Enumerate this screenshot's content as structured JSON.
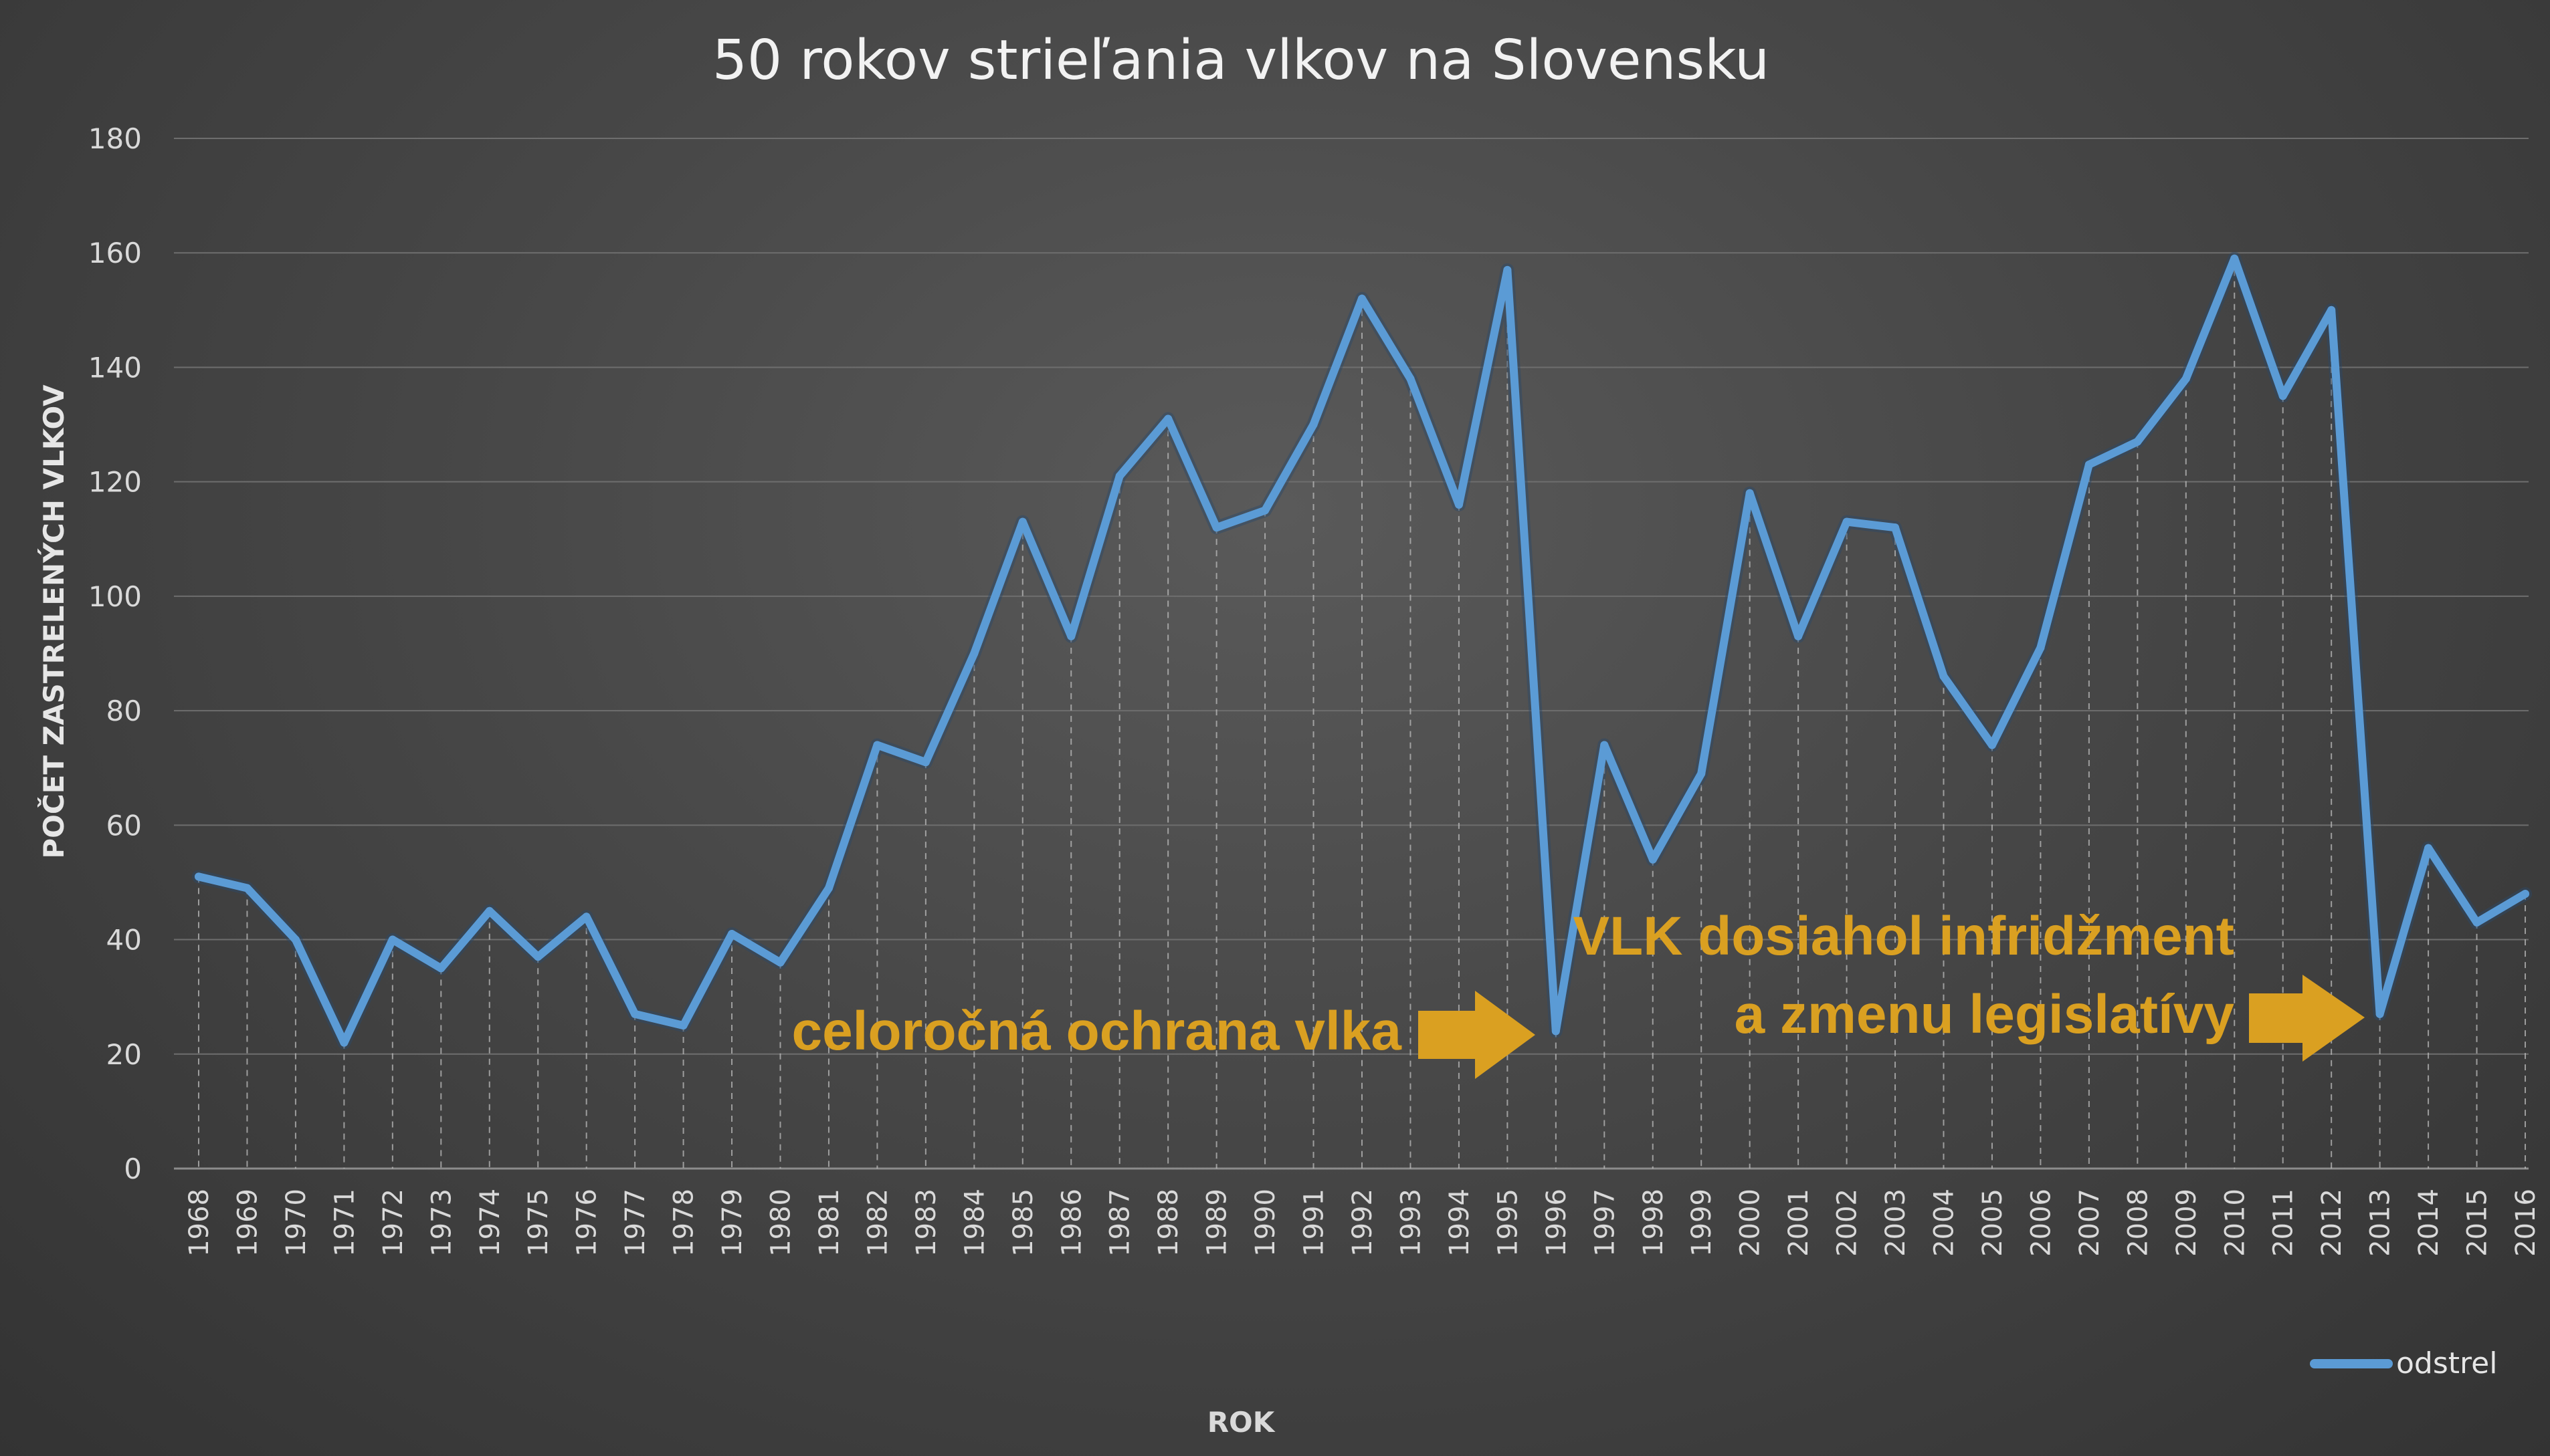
{
  "chart_data": {
    "type": "line",
    "title": "50 rokov strieľania vlkov na Slovensku",
    "xlabel": "ROK",
    "ylabel": "POČET  ZASTRELENÝCH VLKOV",
    "ylim": [
      0,
      180
    ],
    "yticks": [
      0,
      20,
      40,
      60,
      80,
      100,
      120,
      140,
      160,
      180
    ],
    "grid": true,
    "legend_position": "bottom-right",
    "categories": [
      "1968",
      "1969",
      "1970",
      "1971",
      "1972",
      "1973",
      "1974",
      "1975",
      "1976",
      "1977",
      "1978",
      "1979",
      "1980",
      "1981",
      "1982",
      "1983",
      "1984",
      "1985",
      "1986",
      "1987",
      "1988",
      "1989",
      "1990",
      "1991",
      "1992",
      "1993",
      "1994",
      "1995",
      "1996",
      "1997",
      "1998",
      "1999",
      "2000",
      "2001",
      "2002",
      "2003",
      "2004",
      "2005",
      "2006",
      "2007",
      "2008",
      "2009",
      "2010",
      "2011",
      "2012",
      "2013",
      "2014",
      "2015",
      "2016"
    ],
    "series": [
      {
        "name": "odstrel",
        "color": "#5b9bd5",
        "values": [
          51,
          49,
          40,
          22,
          40,
          35,
          45,
          37,
          44,
          27,
          25,
          41,
          36,
          49,
          74,
          71,
          90,
          113,
          93,
          121,
          131,
          112,
          115,
          130,
          152,
          138,
          116,
          157,
          24,
          74,
          54,
          69,
          118,
          93,
          113,
          112,
          86,
          74,
          91,
          123,
          127,
          138,
          159,
          135,
          150,
          27,
          56,
          43,
          48
        ]
      }
    ],
    "annotations": [
      {
        "id": "ochrana",
        "lines": [
          "celoročná ochrana vlka"
        ],
        "color": "#daa021"
      },
      {
        "id": "infridzment",
        "lines": [
          "VLK dosiahol infridžment",
          "a zmenu legislatívy"
        ],
        "color": "#daa021"
      }
    ]
  }
}
